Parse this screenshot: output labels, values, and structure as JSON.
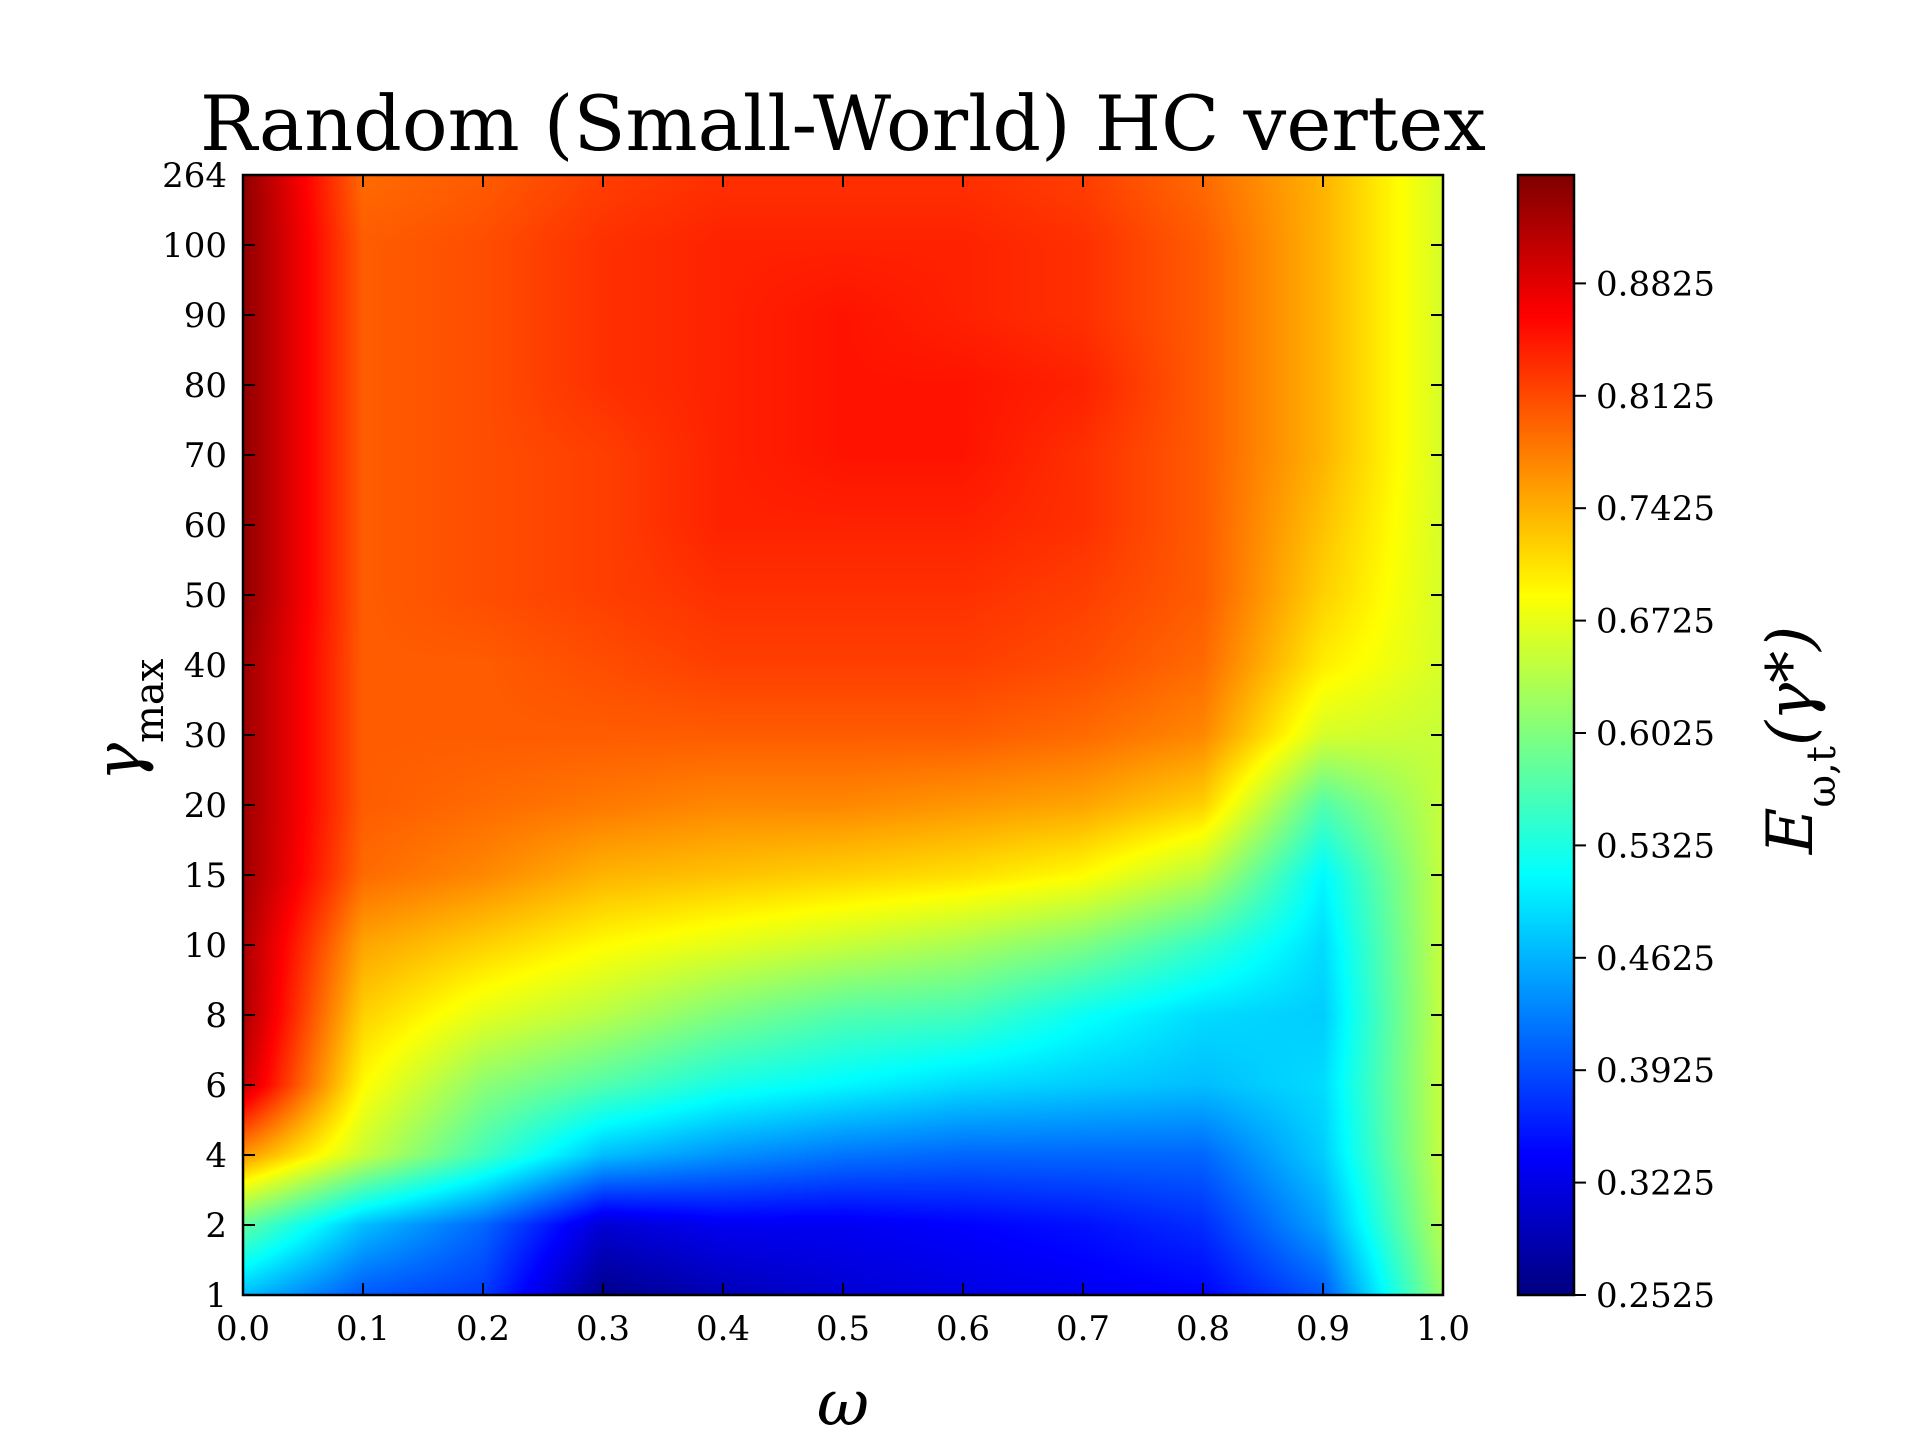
{
  "chart_data": {
    "type": "heatmap",
    "title": "Random (Small-World) HC vertex",
    "xlabel": {
      "main": "ω",
      "sub": ""
    },
    "ylabel": {
      "main": "γ",
      "sub": "max"
    },
    "colorbar_label": {
      "main": "E",
      "sub": "ω,t",
      "rest": "(γ*)"
    },
    "x": [
      0.0,
      0.1,
      0.2,
      0.3,
      0.4,
      0.5,
      0.6,
      0.7,
      0.8,
      0.9,
      1.0
    ],
    "x_tick_labels": [
      "0.0",
      "0.1",
      "0.2",
      "0.3",
      "0.4",
      "0.5",
      "0.6",
      "0.7",
      "0.8",
      "0.9",
      "1.0"
    ],
    "y": [
      1,
      2,
      4,
      6,
      8,
      10,
      15,
      20,
      30,
      40,
      50,
      60,
      70,
      80,
      90,
      100,
      264
    ],
    "y_tick_labels": [
      "1",
      "2",
      "4",
      "6",
      "8",
      "10",
      "15",
      "20",
      "30",
      "40",
      "50",
      "60",
      "70",
      "80",
      "90",
      "100",
      "264"
    ],
    "y_scale": "categorical (evenly spaced)",
    "colormap": "jet",
    "colorbar_range": [
      0.2525,
      0.95
    ],
    "colorbar_ticks": [
      0.2525,
      0.3225,
      0.3925,
      0.4625,
      0.5325,
      0.6025,
      0.6725,
      0.7425,
      0.8125,
      0.8825
    ],
    "colorbar_tick_labels": [
      "0.2525",
      "0.3225",
      "0.3925",
      "0.4625",
      "0.5325",
      "0.6025",
      "0.6725",
      "0.7425",
      "0.8125",
      "0.8825"
    ],
    "values": [
      [
        0.47,
        0.4,
        0.38,
        0.26,
        0.29,
        0.31,
        0.32,
        0.33,
        0.34,
        0.4,
        0.62
      ],
      [
        0.58,
        0.47,
        0.41,
        0.31,
        0.33,
        0.33,
        0.34,
        0.35,
        0.37,
        0.45,
        0.64
      ],
      [
        0.76,
        0.65,
        0.56,
        0.47,
        0.44,
        0.42,
        0.41,
        0.41,
        0.41,
        0.48,
        0.65
      ],
      [
        0.9,
        0.69,
        0.61,
        0.57,
        0.53,
        0.51,
        0.49,
        0.48,
        0.47,
        0.49,
        0.65
      ],
      [
        0.92,
        0.72,
        0.67,
        0.64,
        0.6,
        0.57,
        0.56,
        0.52,
        0.49,
        0.48,
        0.65
      ],
      [
        0.92,
        0.75,
        0.72,
        0.69,
        0.67,
        0.65,
        0.63,
        0.6,
        0.55,
        0.49,
        0.65
      ],
      [
        0.93,
        0.79,
        0.77,
        0.74,
        0.73,
        0.72,
        0.71,
        0.69,
        0.64,
        0.51,
        0.65
      ],
      [
        0.93,
        0.8,
        0.79,
        0.78,
        0.77,
        0.77,
        0.76,
        0.75,
        0.72,
        0.57,
        0.65
      ],
      [
        0.93,
        0.8,
        0.8,
        0.8,
        0.8,
        0.8,
        0.8,
        0.79,
        0.77,
        0.66,
        0.65
      ],
      [
        0.93,
        0.8,
        0.8,
        0.81,
        0.82,
        0.82,
        0.82,
        0.81,
        0.79,
        0.7,
        0.66
      ],
      [
        0.94,
        0.8,
        0.81,
        0.82,
        0.83,
        0.83,
        0.83,
        0.82,
        0.8,
        0.72,
        0.66
      ],
      [
        0.94,
        0.8,
        0.81,
        0.82,
        0.84,
        0.84,
        0.84,
        0.83,
        0.8,
        0.73,
        0.66
      ],
      [
        0.94,
        0.8,
        0.81,
        0.82,
        0.84,
        0.85,
        0.85,
        0.83,
        0.8,
        0.74,
        0.66
      ],
      [
        0.94,
        0.8,
        0.81,
        0.83,
        0.84,
        0.85,
        0.85,
        0.84,
        0.8,
        0.74,
        0.66
      ],
      [
        0.94,
        0.8,
        0.81,
        0.83,
        0.84,
        0.85,
        0.84,
        0.83,
        0.8,
        0.74,
        0.66
      ],
      [
        0.94,
        0.8,
        0.81,
        0.83,
        0.84,
        0.84,
        0.84,
        0.83,
        0.8,
        0.74,
        0.66
      ],
      [
        0.94,
        0.79,
        0.8,
        0.82,
        0.83,
        0.83,
        0.83,
        0.82,
        0.79,
        0.74,
        0.66
      ]
    ]
  }
}
